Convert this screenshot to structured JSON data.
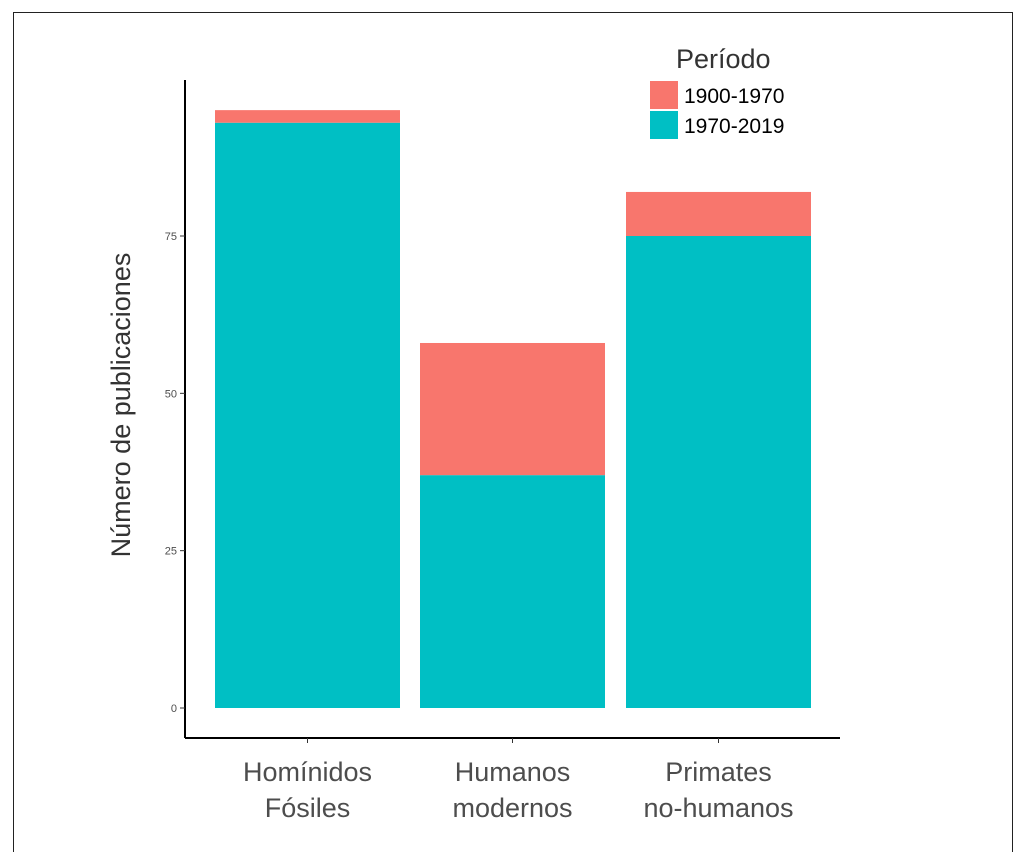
{
  "chart_data": {
    "type": "bar",
    "stacked": true,
    "categories": [
      [
        "Homínidos",
        "Fósiles"
      ],
      [
        "Humanos",
        "modernos"
      ],
      [
        "Primates",
        "no-humanos"
      ]
    ],
    "series": [
      {
        "name": "1970-2019",
        "color": "#00BFC4",
        "values": [
          93,
          37,
          75
        ]
      },
      {
        "name": "1900-1970",
        "color": "#F8766D",
        "values": [
          2,
          21,
          7
        ]
      }
    ],
    "ylabel": "Número de publicaciones",
    "xlabel": "",
    "yticks": [
      0,
      25,
      50,
      75
    ],
    "ylim": [
      -5,
      105
    ],
    "legend": {
      "title": "Período",
      "placement": "top-right",
      "order": [
        "1900-1970",
        "1970-2019"
      ]
    },
    "grid": false
  }
}
